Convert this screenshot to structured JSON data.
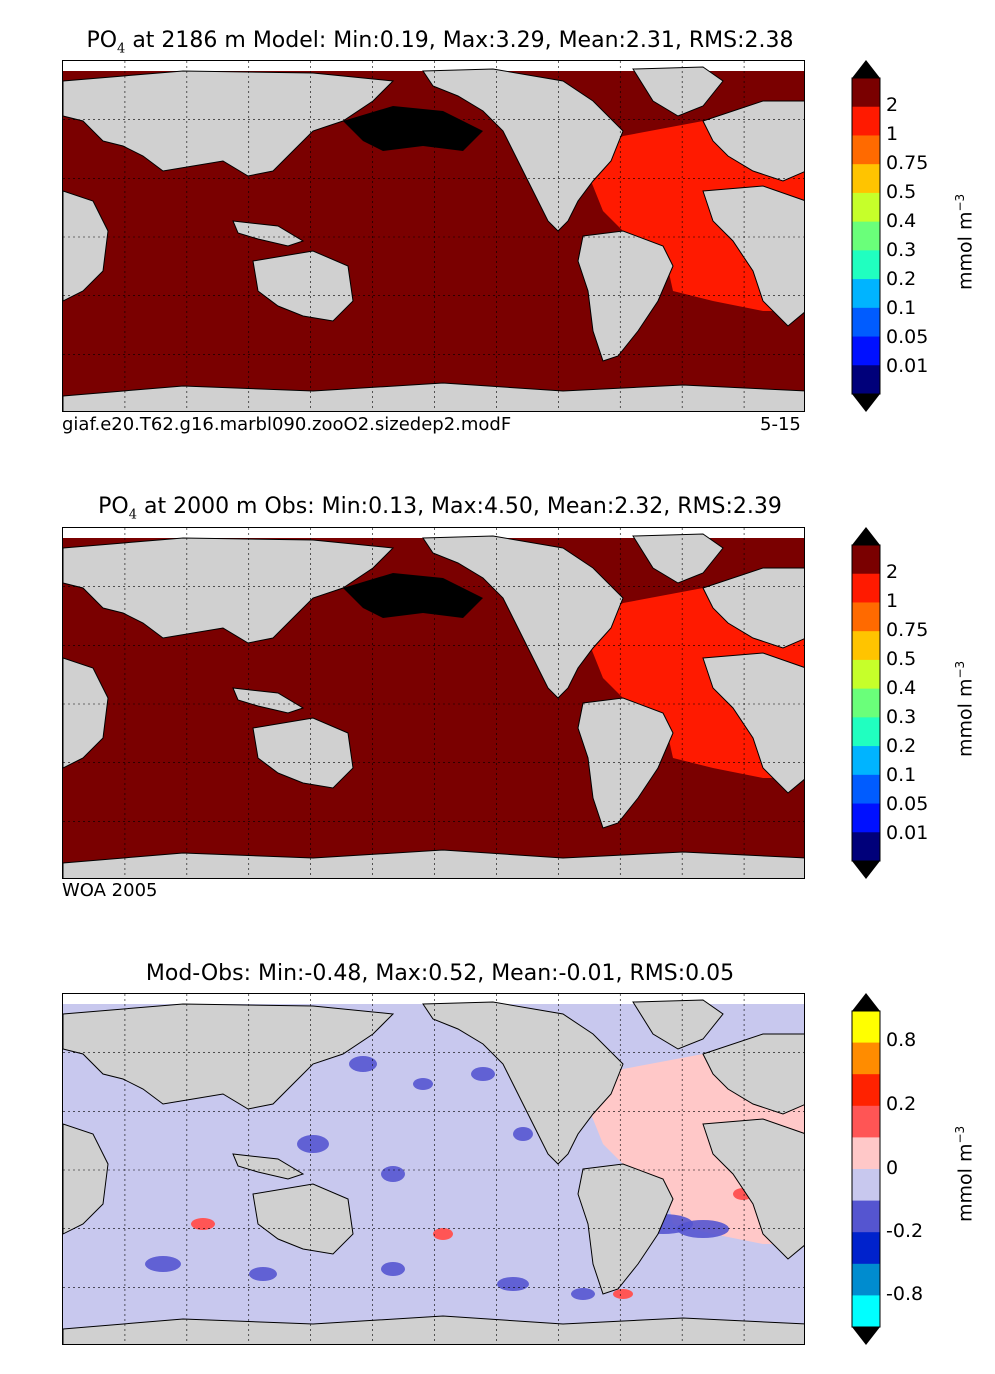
{
  "panels": [
    {
      "id": "model",
      "title_var": "PO",
      "title_sub": "4",
      "title_rest": " at 2186 m Model: Min:0.19, Max:3.29, Mean:2.31, RMS:2.38",
      "caption_left": "giaf.e20.T62.g16.marbl090.zooO2.sizedep2.modF",
      "caption_right": "5-15",
      "colorbar": {
        "ticks": [
          "2",
          "1",
          "0.75",
          "0.5",
          "0.4",
          "0.3",
          "0.2",
          "0.1",
          "0.05",
          "0.01"
        ],
        "colors": [
          "#7a0000",
          "#ff1a00",
          "#ff6a00",
          "#ffc400",
          "#c6ff2a",
          "#6aff7a",
          "#20ffc0",
          "#00b4ff",
          "#005cff",
          "#0010ff",
          "#00007a"
        ],
        "top_arrow": "#000000",
        "bottom_arrow": "#000000",
        "label": "mmol m",
        "label_sup": "−3"
      },
      "map_fill": "#7a0000",
      "atlantic_fill": "#ff1a00",
      "anomaly_fill": "#000000"
    },
    {
      "id": "obs",
      "title_var": "PO",
      "title_sub": "4",
      "title_rest": " at 2000 m Obs: Min:0.13, Max:4.50, Mean:2.32, RMS:2.39",
      "caption_left": "WOA 2005",
      "caption_right": "",
      "colorbar": {
        "ticks": [
          "2",
          "1",
          "0.75",
          "0.5",
          "0.4",
          "0.3",
          "0.2",
          "0.1",
          "0.05",
          "0.01"
        ],
        "colors": [
          "#7a0000",
          "#ff1a00",
          "#ff6a00",
          "#ffc400",
          "#c6ff2a",
          "#6aff7a",
          "#20ffc0",
          "#00b4ff",
          "#005cff",
          "#0010ff",
          "#00007a"
        ],
        "top_arrow": "#000000",
        "bottom_arrow": "#000000",
        "label": "mmol m",
        "label_sup": "−3"
      },
      "map_fill": "#7a0000",
      "atlantic_fill": "#ff1a00",
      "anomaly_fill": "#000000"
    },
    {
      "id": "diff",
      "title_var": "",
      "title_sub": "",
      "title_rest": "Mod-Obs: Min:-0.48, Max:0.52, Mean:-0.01, RMS:0.05",
      "caption_left": "",
      "caption_right": "",
      "colorbar": {
        "ticks": [
          "0.8",
          "0.2",
          "0",
          "-0.2",
          "-0.8"
        ],
        "colors": [
          "#ffff00",
          "#ff8c00",
          "#ff2200",
          "#ff5555",
          "#ffc8c8",
          "#c8c8ee",
          "#5555d0",
          "#0022cc",
          "#008ccf",
          "#00ffff"
        ],
        "top_arrow": "#000000",
        "bottom_arrow": "#000000",
        "label": "mmol m",
        "label_sup": "−3"
      },
      "map_fill": "#c8c8ee",
      "atlantic_fill": "#ffc8c8",
      "anomaly_fill": "#5555d0"
    }
  ],
  "land_color": "#d0d0d0",
  "nodata_color": "#ffffff"
}
